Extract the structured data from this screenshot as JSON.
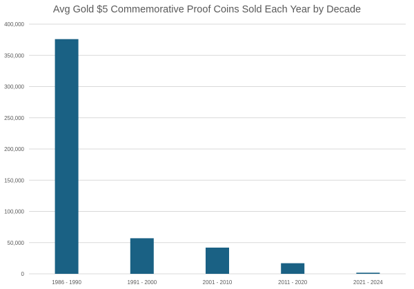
{
  "chart_data": {
    "type": "bar",
    "title": "Avg Gold $5 Commemorative Proof Coins Sold Each Year by Decade",
    "xlabel": "",
    "ylabel": "",
    "categories": [
      "1986 - 1990",
      "1991 - 2000",
      "2001 - 2010",
      "2011 - 2020",
      "2021 - 2024"
    ],
    "values": [
      376000,
      57000,
      42000,
      17000,
      1800
    ],
    "ylim": [
      0,
      400000
    ],
    "yticks": [
      0,
      50000,
      100000,
      150000,
      200000,
      250000,
      300000,
      350000,
      400000
    ],
    "ytick_labels": [
      "0",
      "50,000",
      "100,000",
      "150,000",
      "200,000",
      "250,000",
      "300,000",
      "350,000",
      "400,000"
    ],
    "grid": true,
    "legend": "none",
    "bar_color": "#1a6184",
    "grid_color": "#d9d9d9"
  }
}
